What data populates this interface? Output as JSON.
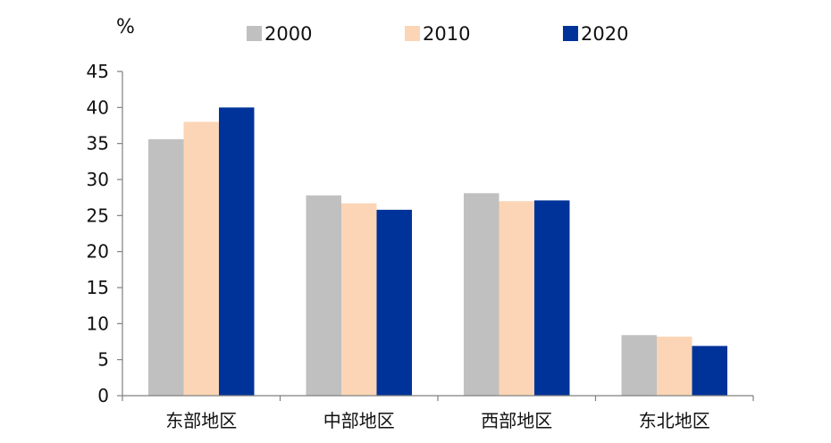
{
  "chart_data": {
    "type": "bar",
    "title": "",
    "ylabel": "%",
    "xlabel": "",
    "ylim": [
      0,
      45
    ],
    "yticks": [
      0,
      5,
      10,
      15,
      20,
      25,
      30,
      35,
      40,
      45
    ],
    "grid": false,
    "legend_position": "top",
    "categories": [
      "东部地区",
      "中部地区",
      "西部地区",
      "东北地区"
    ],
    "series": [
      {
        "name": "2000",
        "color": "#c0c0c0",
        "values": [
          35.6,
          27.8,
          28.1,
          8.4
        ]
      },
      {
        "name": "2010",
        "color": "#fbd5b5",
        "values": [
          38.0,
          26.7,
          27.0,
          8.2
        ]
      },
      {
        "name": "2020",
        "color": "#003399",
        "values": [
          40.0,
          25.8,
          27.1,
          6.9
        ]
      }
    ]
  }
}
